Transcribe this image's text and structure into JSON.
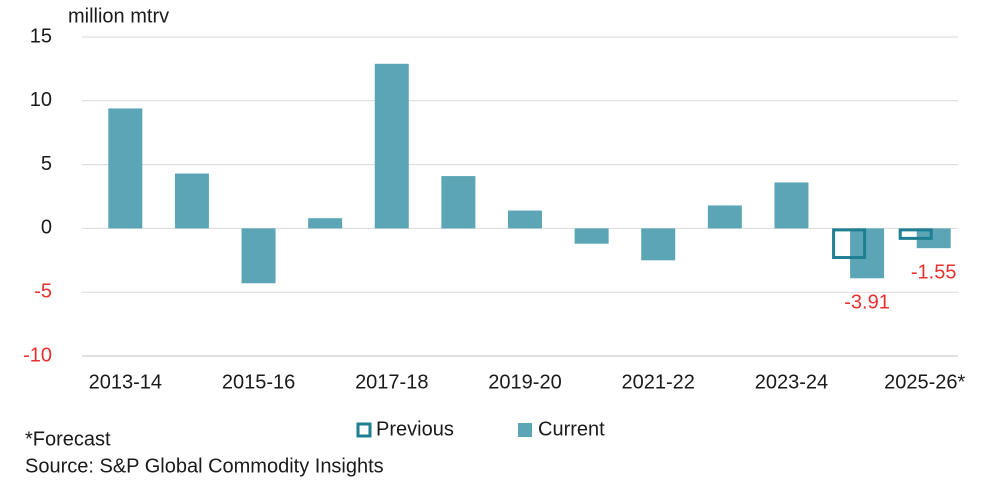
{
  "chart_data": {
    "type": "bar",
    "y_axis_label": "million mtrv",
    "categories": [
      "2013-14",
      null,
      "2015-16",
      null,
      "2017-18",
      null,
      "2019-20",
      null,
      "2021-22",
      null,
      "2023-24",
      null,
      "2025-26*"
    ],
    "series": [
      {
        "name": "Previous",
        "color": "#1f7f92",
        "values": [
          null,
          null,
          null,
          null,
          null,
          null,
          null,
          null,
          null,
          null,
          null,
          -2.4,
          -0.9
        ]
      },
      {
        "name": "Current",
        "color": "#5ba5b6",
        "values": [
          9.4,
          4.3,
          -4.3,
          0.8,
          12.9,
          4.1,
          1.4,
          -1.2,
          -2.5,
          1.8,
          3.6,
          -3.91,
          -1.55
        ]
      }
    ],
    "ylim": [
      -10,
      15
    ],
    "yticks": [
      -10,
      -5,
      0,
      5,
      10,
      15
    ],
    "grid": true,
    "negative_color": "#e8312f",
    "footnotes": [
      "*Forecast",
      "Source: S&P Global Commodity Insights"
    ]
  }
}
